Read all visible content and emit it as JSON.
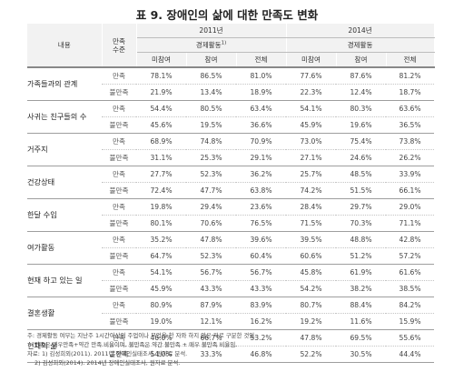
{
  "title": "표 9. 장애인의 삶에 대한 만족도 변화",
  "header": {
    "category": "내용",
    "level": "만족\n수준",
    "years": [
      "2011년",
      "2014년"
    ],
    "econ": "경제활동",
    "econ_mark": "1)",
    "cols": [
      "미참여",
      "참여",
      "전체"
    ]
  },
  "rows": [
    {
      "category": "가족들과의 관계",
      "sat": {
        "label": "만족",
        "values": [
          "78.1%",
          "86.5%",
          "81.0%",
          "77.6%",
          "87.6%",
          "81.2%"
        ]
      },
      "dis": {
        "label": "불만족",
        "values": [
          "21.9%",
          "13.4%",
          "18.9%",
          "22.3%",
          "12.4%",
          "18.7%"
        ]
      }
    },
    {
      "category": "사귀는 친구들의 수",
      "sat": {
        "label": "만족",
        "values": [
          "54.4%",
          "80.5%",
          "63.4%",
          "54.1%",
          "80.3%",
          "63.6%"
        ]
      },
      "dis": {
        "label": "불만족",
        "values": [
          "45.6%",
          "19.5%",
          "36.6%",
          "45.9%",
          "19.6%",
          "36.5%"
        ]
      }
    },
    {
      "category": "거주지",
      "sat": {
        "label": "만족",
        "values": [
          "68.9%",
          "74.8%",
          "70.9%",
          "73.0%",
          "75.4%",
          "73.8%"
        ]
      },
      "dis": {
        "label": "불만족",
        "values": [
          "31.1%",
          "25.3%",
          "29.1%",
          "27.1%",
          "24.6%",
          "26.2%"
        ]
      }
    },
    {
      "category": "건강상태",
      "sat": {
        "label": "만족",
        "values": [
          "27.7%",
          "52.3%",
          "36.2%",
          "25.7%",
          "48.5%",
          "33.9%"
        ]
      },
      "dis": {
        "label": "불만족",
        "values": [
          "72.4%",
          "47.7%",
          "63.8%",
          "74.2%",
          "51.5%",
          "66.1%"
        ]
      }
    },
    {
      "category": "한달 수입",
      "sat": {
        "label": "만족",
        "values": [
          "19.8%",
          "29.4%",
          "23.6%",
          "28.4%",
          "29.7%",
          "29.0%"
        ]
      },
      "dis": {
        "label": "불만족",
        "values": [
          "80.1%",
          "70.6%",
          "76.5%",
          "71.5%",
          "70.3%",
          "71.1%"
        ]
      }
    },
    {
      "category": "여가활동",
      "sat": {
        "label": "만족",
        "values": [
          "35.2%",
          "47.8%",
          "39.6%",
          "39.5%",
          "48.8%",
          "42.8%"
        ]
      },
      "dis": {
        "label": "불만족",
        "values": [
          "64.7%",
          "52.3%",
          "60.4%",
          "60.6%",
          "51.2%",
          "57.2%"
        ]
      }
    },
    {
      "category": "현재 하고 있는 일",
      "sat": {
        "label": "만족",
        "values": [
          "54.1%",
          "56.7%",
          "56.7%",
          "45.8%",
          "61.9%",
          "61.6%"
        ]
      },
      "dis": {
        "label": "불만족",
        "values": [
          "45.9%",
          "43.3%",
          "43.3%",
          "54.2%",
          "38.2%",
          "38.5%"
        ]
      }
    },
    {
      "category": "결혼생활",
      "sat": {
        "label": "만족",
        "values": [
          "80.9%",
          "87.9%",
          "83.9%",
          "80.7%",
          "88.4%",
          "84.2%"
        ]
      },
      "dis": {
        "label": "불만족",
        "values": [
          "19.0%",
          "12.1%",
          "16.2%",
          "19.2%",
          "11.6%",
          "15.9%"
        ]
      }
    },
    {
      "category": "현재의 삶",
      "sat": {
        "label": "만족",
        "values": [
          "46.0%",
          "66.7%",
          "53.2%",
          "47.8%",
          "69.5%",
          "55.6%"
        ]
      },
      "dis": {
        "label": "불만족",
        "values": [
          "54.0%",
          "33.3%",
          "46.8%",
          "52.2%",
          "30.5%",
          "44.4%"
        ]
      }
    }
  ],
  "notes": [
    "주: 경제활동 여부는 지난주 1시간이상의 주업이나 부업을 한 자와 하지 않은 자로 구분한 것임.",
    "만족은 매우만족+약간 만족 비율이며, 불만족은 약간 불만족 + 매우 불만족 비율임.",
    "자료: 1) 김성희외(2011). 2011년 장애인실태조사, 원자료 분석.",
    "2) 김성희외(2014). 2014년 장애인실태조사, 원자료 분석."
  ]
}
